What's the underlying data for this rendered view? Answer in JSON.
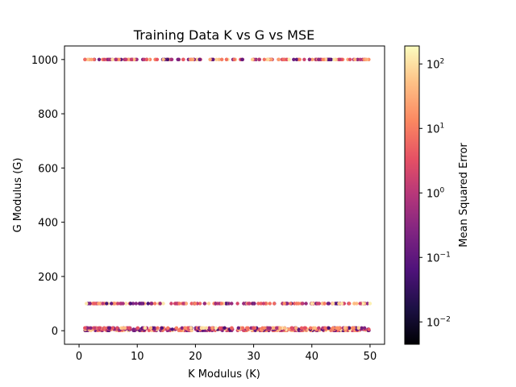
{
  "chart_data": {
    "type": "scatter",
    "title": "Training Data K vs G vs MSE",
    "xlabel": "K Modulus (K)",
    "ylabel": "G Modulus (G)",
    "xlim": [
      -2.5,
      52.5
    ],
    "ylim": [
      -50,
      1050
    ],
    "xticks": [
      0,
      10,
      20,
      30,
      40,
      50
    ],
    "yticks": [
      0,
      200,
      400,
      600,
      800,
      1000
    ],
    "grid": false,
    "x_range": [
      1,
      50
    ],
    "g_levels": [
      1,
      5,
      10,
      100,
      1000
    ],
    "point_count_per_level": 180,
    "color_scale": "magma",
    "colorbar": {
      "label": "Mean Squared Error",
      "scale": "log",
      "range": [
        0.0045,
        190
      ],
      "ticks": [
        {
          "value": 0.01,
          "base": "10",
          "exp": "−2"
        },
        {
          "value": 0.1,
          "base": "10",
          "exp": "−1"
        },
        {
          "value": 1,
          "base": "10",
          "exp": "0"
        },
        {
          "value": 10,
          "base": "10",
          "exp": "1"
        },
        {
          "value": 100,
          "base": "10",
          "exp": "2"
        }
      ]
    },
    "marker_size": 4,
    "mse_typical_range": [
      0.05,
      150
    ]
  }
}
